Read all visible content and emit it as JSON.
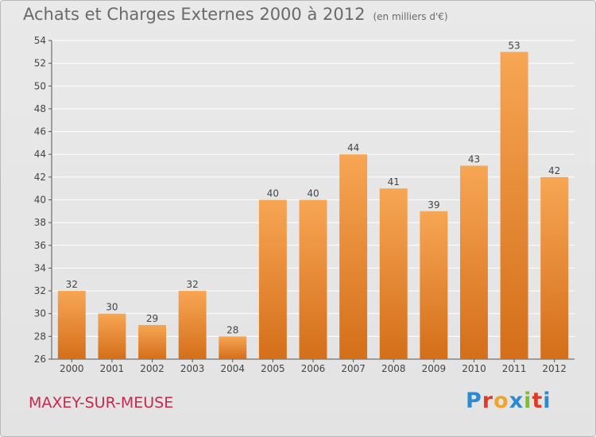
{
  "header": {
    "title": "Achats et Charges Externes 2000 à 2012",
    "unit": "(en milliers d'€)"
  },
  "footer": {
    "commune": "MAXEY-SUR-MEUSE",
    "logo_letters": [
      "P",
      "r",
      "o",
      "x",
      "i",
      "t",
      "i"
    ],
    "logo_colors": [
      "#2c8bd0",
      "#e23b25",
      "#f1a42a",
      "#2c8bd0",
      "#7bbf2a",
      "#e23b25",
      "#2c8bd0"
    ]
  },
  "colors": {
    "bar_top": "#f7a654",
    "bar_bottom": "#d46e1a",
    "grid": "#ffffff"
  },
  "chart_data": {
    "type": "bar",
    "title": "Achats et Charges Externes 2000 à 2012",
    "categories": [
      "2000",
      "2001",
      "2002",
      "2003",
      "2004",
      "2005",
      "2006",
      "2007",
      "2008",
      "2009",
      "2010",
      "2011",
      "2012"
    ],
    "values": [
      32,
      30,
      29,
      32,
      28,
      40,
      40,
      44,
      41,
      39,
      43,
      53,
      42
    ],
    "ylim": [
      26,
      54
    ],
    "yticks": [
      26,
      28,
      30,
      32,
      34,
      36,
      38,
      40,
      42,
      44,
      46,
      48,
      50,
      52,
      54
    ],
    "grid": true,
    "data_labels": true
  }
}
